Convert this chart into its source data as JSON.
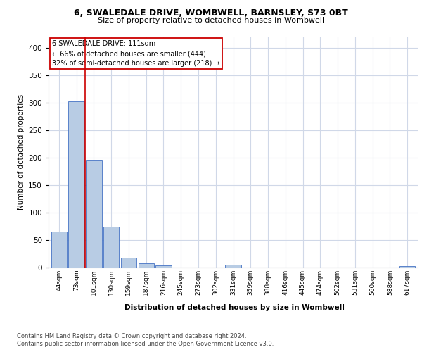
{
  "title1": "6, SWALEDALE DRIVE, WOMBWELL, BARNSLEY, S73 0BT",
  "title2": "Size of property relative to detached houses in Wombwell",
  "xlabel": "Distribution of detached houses by size in Wombwell",
  "ylabel": "Number of detached properties",
  "categories": [
    "44sqm",
    "73sqm",
    "101sqm",
    "130sqm",
    "159sqm",
    "187sqm",
    "216sqm",
    "245sqm",
    "273sqm",
    "302sqm",
    "331sqm",
    "359sqm",
    "388sqm",
    "416sqm",
    "445sqm",
    "474sqm",
    "502sqm",
    "531sqm",
    "560sqm",
    "588sqm",
    "617sqm"
  ],
  "values": [
    65,
    303,
    196,
    75,
    18,
    8,
    4,
    0,
    0,
    0,
    5,
    0,
    0,
    0,
    0,
    0,
    0,
    0,
    0,
    0,
    3
  ],
  "bar_color": "#b8cce4",
  "bar_edge_color": "#4472c4",
  "annotation_title": "6 SWALEDALE DRIVE: 111sqm",
  "annotation_line1": "← 66% of detached houses are smaller (444)",
  "annotation_line2": "32% of semi-detached houses are larger (218) →",
  "annotation_box_color": "#ffffff",
  "annotation_box_edge": "#cc0000",
  "vline_color": "#cc0000",
  "ylim": [
    0,
    420
  ],
  "yticks": [
    0,
    50,
    100,
    150,
    200,
    250,
    300,
    350,
    400
  ],
  "footer1": "Contains HM Land Registry data © Crown copyright and database right 2024.",
  "footer2": "Contains public sector information licensed under the Open Government Licence v3.0.",
  "bg_color": "#ffffff",
  "grid_color": "#d0d8e8"
}
